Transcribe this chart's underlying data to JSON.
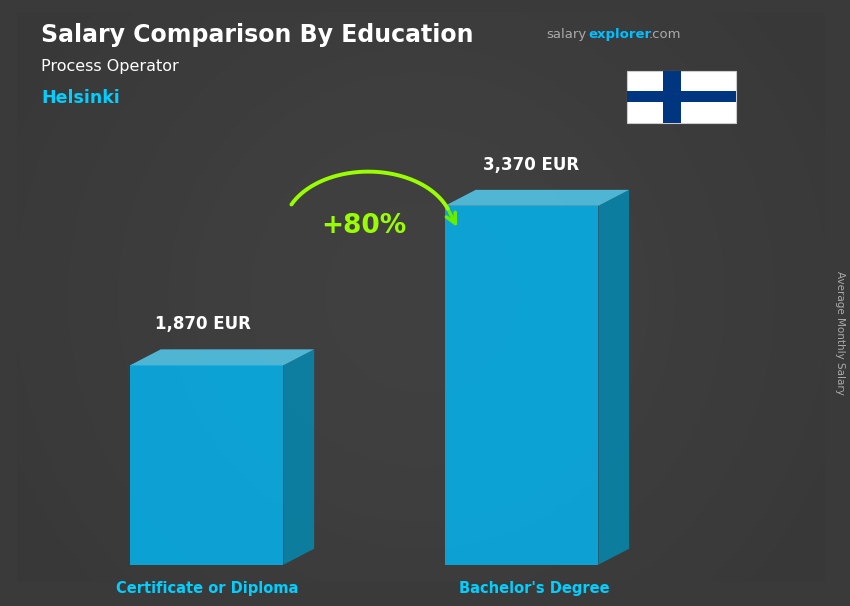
{
  "title_main": "Salary Comparison By Education",
  "subtitle_job": "Process Operator",
  "subtitle_city": "Helsinki",
  "ylabel": "Average Monthly Salary",
  "categories": [
    "Certificate or Diploma",
    "Bachelor's Degree"
  ],
  "values": [
    1870,
    3370
  ],
  "value_labels": [
    "1,870 EUR",
    "3,370 EUR"
  ],
  "pct_change": "+80%",
  "bar_color_face": "#00BFFF",
  "bar_color_side": "#0090BB",
  "bar_color_top": "#55D8FF",
  "bar_alpha": 0.78,
  "bg_color": "#3a3a3a",
  "title_color": "#FFFFFF",
  "city_color": "#00CFFF",
  "cat_label_color": "#00CFFF",
  "value_label_color": "#FFFFFF",
  "pct_color": "#99FF00",
  "arrow_color": "#66EE00",
  "salary_text_color": "#AAAAAA",
  "explorer_color": "#00BFFF",
  "flag_bg": "#FFFFFF",
  "flag_cross": "#003580"
}
